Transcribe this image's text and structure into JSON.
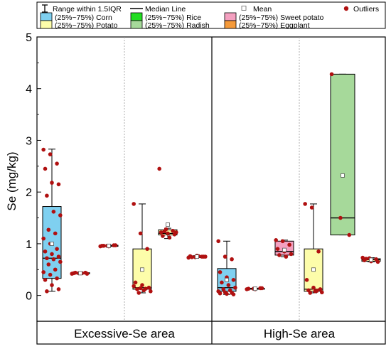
{
  "chart_data": {
    "type": "box",
    "ylabel": "Se (mg/kg)",
    "ylim": [
      -0.5,
      5
    ],
    "yticks": [
      0,
      1,
      2,
      3,
      4,
      5
    ],
    "groups": [
      "Excessive-Se area",
      "High-Se area"
    ],
    "legend": {
      "placement": "top",
      "range_label": "Range within 1.5IQR",
      "median_label": "Median Line",
      "mean_label": "Mean",
      "outliers_label": "Outliers",
      "crops": [
        {
          "label": "(25%~75%) Corn",
          "color": "#7fd0f0"
        },
        {
          "label": "(25%~75%) Rice",
          "color": "#22dd22"
        },
        {
          "label": "(25%~75%) Sweet potato",
          "color": "#f4a0c0"
        },
        {
          "label": "(25%~75%) Potato",
          "color": "#fdfdaa"
        },
        {
          "label": "(25%~75%) Radish",
          "color": "#a6d99a"
        },
        {
          "label": "(25%~75%) Eggplant",
          "color": "#f59a3a"
        }
      ]
    },
    "boxes": [
      {
        "group": "Excessive-Se area",
        "crop": "Corn",
        "q1": 0.33,
        "median": 0.72,
        "q3": 1.72,
        "whisker_low": 0.08,
        "whisker_high": 2.83,
        "mean": 1.0,
        "points": [
          2.82,
          2.73,
          2.55,
          2.45,
          2.18,
          2.15,
          1.93,
          1.62,
          1.55,
          1.27,
          1.2,
          1.1,
          1.0,
          0.9,
          0.85,
          0.8,
          0.75,
          0.72,
          0.7,
          0.65,
          0.6,
          0.5,
          0.45,
          0.4,
          0.33,
          0.3,
          0.2,
          0.12,
          0.08
        ]
      },
      {
        "group": "Excessive-Se area",
        "crop": "Corn",
        "q1": 0.42,
        "median": 0.43,
        "q3": 0.44,
        "whisker_low": 0.42,
        "whisker_high": 0.44,
        "mean": 0.43,
        "points": [
          0.42,
          0.43,
          0.44,
          0.43,
          0.43,
          0.42,
          0.44,
          0.43
        ]
      },
      {
        "group": "Excessive-Se area",
        "crop": "Corn",
        "q1": 0.95,
        "median": 0.96,
        "q3": 0.97,
        "whisker_low": 0.95,
        "whisker_high": 0.97,
        "mean": 0.96,
        "points": [
          0.95,
          0.96,
          0.97,
          0.96,
          0.95,
          0.97,
          0.96
        ]
      },
      {
        "group": "Excessive-Se area",
        "crop": "Potato",
        "q1": 0.12,
        "median": 0.15,
        "q3": 0.9,
        "whisker_low": 0.05,
        "whisker_high": 1.77,
        "mean": 0.5,
        "points": [
          1.77,
          1.2,
          0.9,
          0.25,
          0.2,
          0.15,
          0.12,
          0.1,
          0.08,
          0.05,
          0.13,
          0.18,
          0.14
        ]
      },
      {
        "group": "Excessive-Se area",
        "crop": "Potato",
        "q1": 1.17,
        "median": 1.2,
        "q3": 1.27,
        "whisker_low": 1.1,
        "whisker_high": 1.3,
        "mean": 1.37,
        "points": [
          2.45,
          1.28,
          1.25,
          1.22,
          1.2,
          1.18,
          1.15,
          1.12,
          1.22,
          1.24
        ]
      },
      {
        "group": "Excessive-Se area",
        "crop": "Potato",
        "q1": 0.74,
        "median": 0.75,
        "q3": 0.76,
        "whisker_low": 0.73,
        "whisker_high": 0.77,
        "mean": 0.75,
        "points": [
          0.73,
          0.74,
          0.75,
          0.76,
          0.77,
          0.75,
          0.74,
          0.76,
          0.75
        ]
      },
      {
        "group": "High-Se area",
        "crop": "Corn",
        "q1": 0.08,
        "median": 0.15,
        "q3": 0.52,
        "whisker_low": 0.02,
        "whisker_high": 1.05,
        "mean": 0.3,
        "points": [
          1.05,
          0.75,
          0.7,
          0.45,
          0.35,
          0.3,
          0.25,
          0.2,
          0.15,
          0.12,
          0.1,
          0.08,
          0.06,
          0.05,
          0.04,
          0.03,
          0.02
        ]
      },
      {
        "group": "High-Se area",
        "crop": "Corn",
        "q1": 0.12,
        "median": 0.13,
        "q3": 0.14,
        "whisker_low": 0.12,
        "whisker_high": 0.14,
        "mean": 0.13,
        "points": [
          0.12,
          0.13,
          0.14,
          0.13,
          0.12,
          0.14
        ]
      },
      {
        "group": "High-Se area",
        "crop": "Sweet potato",
        "q1": 0.78,
        "median": 0.85,
        "q3": 1.05,
        "whisker_low": 0.75,
        "whisker_high": 1.07,
        "mean": 0.88,
        "points": [
          1.07,
          1.05,
          0.98,
          0.9,
          0.85,
          0.8,
          0.78,
          0.75
        ]
      },
      {
        "group": "High-Se area",
        "crop": "Potato",
        "q1": 0.08,
        "median": 0.12,
        "q3": 0.9,
        "whisker_low": 0.05,
        "whisker_high": 1.77,
        "mean": 0.5,
        "points": [
          1.77,
          1.7,
          0.85,
          0.3,
          0.15,
          0.12,
          0.1,
          0.08,
          0.06,
          0.05,
          0.09
        ]
      },
      {
        "group": "High-Se area",
        "crop": "Radish",
        "q1": 1.17,
        "median": 1.5,
        "q3": 4.28,
        "whisker_low": 1.17,
        "whisker_high": 4.28,
        "mean": 2.32,
        "points": [
          4.28,
          1.5,
          1.17
        ]
      },
      {
        "group": "High-Se area",
        "crop": "Potato",
        "q1": 0.66,
        "median": 0.69,
        "q3": 0.71,
        "whisker_low": 0.65,
        "whisker_high": 0.73,
        "mean": 0.69,
        "points": [
          0.73,
          0.72,
          0.7,
          0.68,
          0.66,
          0.65,
          0.71
        ]
      }
    ]
  }
}
